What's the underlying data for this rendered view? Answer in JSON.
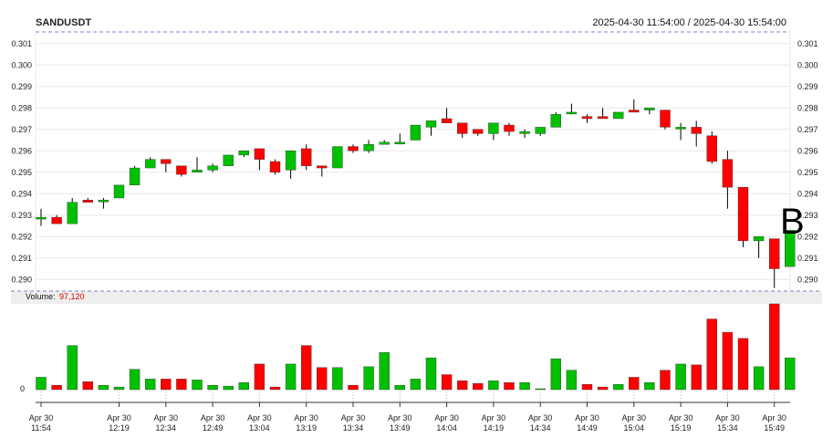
{
  "symbol": "SANDUSDT",
  "time_range": "2025-04-30 11:54:00 / 2025-04-30 15:54:00",
  "volume_label": "Volume:",
  "volume_value": "97,120",
  "volume_axis_label": "0",
  "marker_text": "B",
  "colors": {
    "up": "#00c000",
    "down": "#ff0000",
    "wick": "#000000",
    "grid": "#e8e8e8",
    "separator": "#8080c0",
    "volume_band": "#eeeeee"
  },
  "chart_data": {
    "type": "candlestick",
    "title": "SANDUSDT",
    "price_axis": {
      "range": [
        0.2895,
        0.3015
      ],
      "ticks": [
        "0.301",
        "0.300",
        "0.299",
        "0.298",
        "0.297",
        "0.296",
        "0.295",
        "0.294",
        "0.293",
        "0.292",
        "0.291",
        "0.290"
      ],
      "both_sides": true
    },
    "grid": true,
    "x_ticks": [
      {
        "index": 0,
        "line1": "Apr 30",
        "line2": "11:54"
      },
      {
        "index": 5,
        "line1": "Apr 30",
        "line2": "12:19"
      },
      {
        "index": 8,
        "line1": "Apr 30",
        "line2": "12:34"
      },
      {
        "index": 11,
        "line1": "Apr 30",
        "line2": "12:49"
      },
      {
        "index": 14,
        "line1": "Apr 30",
        "line2": "13:04"
      },
      {
        "index": 17,
        "line1": "Apr 30",
        "line2": "13:19"
      },
      {
        "index": 20,
        "line1": "Apr 30",
        "line2": "13:34"
      },
      {
        "index": 23,
        "line1": "Apr 30",
        "line2": "13:49"
      },
      {
        "index": 26,
        "line1": "Apr 30",
        "line2": "14:04"
      },
      {
        "index": 29,
        "line1": "Apr 30",
        "line2": "14:19"
      },
      {
        "index": 32,
        "line1": "Apr 30",
        "line2": "14:34"
      },
      {
        "index": 35,
        "line1": "Apr 30",
        "line2": "14:49"
      },
      {
        "index": 38,
        "line1": "Apr 30",
        "line2": "15:04"
      },
      {
        "index": 41,
        "line1": "Apr 30",
        "line2": "15:19"
      },
      {
        "index": 44,
        "line1": "Apr 30",
        "line2": "15:34"
      },
      {
        "index": 47,
        "line1": "Apr 30",
        "line2": "15:49"
      }
    ],
    "candles": [
      {
        "o": 0.2929,
        "h": 0.2933,
        "l": 0.2925,
        "c": 0.2929,
        "v": 14000
      },
      {
        "o": 0.2929,
        "h": 0.293,
        "l": 0.2926,
        "c": 0.2926,
        "v": 5000
      },
      {
        "o": 0.2926,
        "h": 0.2938,
        "l": 0.2926,
        "c": 0.2936,
        "v": 50000
      },
      {
        "o": 0.2937,
        "h": 0.2938,
        "l": 0.2936,
        "c": 0.2936,
        "v": 9000
      },
      {
        "o": 0.2937,
        "h": 0.2938,
        "l": 0.2933,
        "c": 0.2937,
        "v": 5000
      },
      {
        "o": 0.2938,
        "h": 0.2944,
        "l": 0.2938,
        "c": 0.2944,
        "v": 3000
      },
      {
        "o": 0.2944,
        "h": 0.2953,
        "l": 0.2944,
        "c": 0.2952,
        "v": 23000
      },
      {
        "o": 0.2952,
        "h": 0.2957,
        "l": 0.2952,
        "c": 0.2956,
        "v": 12000
      },
      {
        "o": 0.2956,
        "h": 0.2956,
        "l": 0.295,
        "c": 0.2954,
        "v": 12000
      },
      {
        "o": 0.2953,
        "h": 0.2953,
        "l": 0.2948,
        "c": 0.2949,
        "v": 12000
      },
      {
        "o": 0.295,
        "h": 0.2957,
        "l": 0.295,
        "c": 0.2951,
        "v": 11000
      },
      {
        "o": 0.2951,
        "h": 0.2954,
        "l": 0.295,
        "c": 0.2953,
        "v": 5000
      },
      {
        "o": 0.2953,
        "h": 0.2958,
        "l": 0.2953,
        "c": 0.2958,
        "v": 4000
      },
      {
        "o": 0.2958,
        "h": 0.296,
        "l": 0.2957,
        "c": 0.296,
        "v": 8000
      },
      {
        "o": 0.2961,
        "h": 0.2961,
        "l": 0.2951,
        "c": 0.2956,
        "v": 29000
      },
      {
        "o": 0.2955,
        "h": 0.2956,
        "l": 0.2949,
        "c": 0.295,
        "v": 3000
      },
      {
        "o": 0.2951,
        "h": 0.296,
        "l": 0.2947,
        "c": 0.296,
        "v": 29000
      },
      {
        "o": 0.2961,
        "h": 0.2963,
        "l": 0.2951,
        "c": 0.2953,
        "v": 50000
      },
      {
        "o": 0.2953,
        "h": 0.2953,
        "l": 0.2948,
        "c": 0.2952,
        "v": 25000
      },
      {
        "o": 0.2952,
        "h": 0.2962,
        "l": 0.2952,
        "c": 0.2962,
        "v": 25000
      },
      {
        "o": 0.2962,
        "h": 0.2963,
        "l": 0.2959,
        "c": 0.296,
        "v": 5000
      },
      {
        "o": 0.296,
        "h": 0.2965,
        "l": 0.2959,
        "c": 0.2963,
        "v": 26000
      },
      {
        "o": 0.2963,
        "h": 0.2965,
        "l": 0.2963,
        "c": 0.2964,
        "v": 42000
      },
      {
        "o": 0.2964,
        "h": 0.2968,
        "l": 0.2963,
        "c": 0.2964,
        "v": 5000
      },
      {
        "o": 0.2965,
        "h": 0.2972,
        "l": 0.2965,
        "c": 0.2972,
        "v": 12000
      },
      {
        "o": 0.2971,
        "h": 0.2974,
        "l": 0.2967,
        "c": 0.2974,
        "v": 36000
      },
      {
        "o": 0.2975,
        "h": 0.298,
        "l": 0.2973,
        "c": 0.2973,
        "v": 17000
      },
      {
        "o": 0.2973,
        "h": 0.2973,
        "l": 0.2966,
        "c": 0.2968,
        "v": 10000
      },
      {
        "o": 0.297,
        "h": 0.297,
        "l": 0.2967,
        "c": 0.2968,
        "v": 7000
      },
      {
        "o": 0.2968,
        "h": 0.2973,
        "l": 0.2965,
        "c": 0.2973,
        "v": 10000
      },
      {
        "o": 0.2972,
        "h": 0.2973,
        "l": 0.2967,
        "c": 0.2969,
        "v": 8000
      },
      {
        "o": 0.2968,
        "h": 0.297,
        "l": 0.2966,
        "c": 0.2969,
        "v": 8000
      },
      {
        "o": 0.2968,
        "h": 0.2971,
        "l": 0.2967,
        "c": 0.2971,
        "v": 500
      },
      {
        "o": 0.2971,
        "h": 0.2978,
        "l": 0.2971,
        "c": 0.2977,
        "v": 35000
      },
      {
        "o": 0.2978,
        "h": 0.2982,
        "l": 0.2977,
        "c": 0.2978,
        "v": 22000
      },
      {
        "o": 0.2976,
        "h": 0.2977,
        "l": 0.2973,
        "c": 0.2975,
        "v": 6000
      },
      {
        "o": 0.2976,
        "h": 0.298,
        "l": 0.2975,
        "c": 0.2975,
        "v": 3000
      },
      {
        "o": 0.2975,
        "h": 0.2978,
        "l": 0.2975,
        "c": 0.2978,
        "v": 6000
      },
      {
        "o": 0.2979,
        "h": 0.2984,
        "l": 0.2978,
        "c": 0.2978,
        "v": 14000
      },
      {
        "o": 0.2979,
        "h": 0.298,
        "l": 0.2977,
        "c": 0.298,
        "v": 8000
      },
      {
        "o": 0.2979,
        "h": 0.2979,
        "l": 0.297,
        "c": 0.2971,
        "v": 22000
      },
      {
        "o": 0.2971,
        "h": 0.2973,
        "l": 0.2965,
        "c": 0.2971,
        "v": 29000
      },
      {
        "o": 0.2971,
        "h": 0.2974,
        "l": 0.2962,
        "c": 0.2968,
        "v": 28000
      },
      {
        "o": 0.2967,
        "h": 0.2969,
        "l": 0.2954,
        "c": 0.2955,
        "v": 80000
      },
      {
        "o": 0.2956,
        "h": 0.296,
        "l": 0.2933,
        "c": 0.2943,
        "v": 65000
      },
      {
        "o": 0.2943,
        "h": 0.2943,
        "l": 0.2915,
        "c": 0.2918,
        "v": 58000
      },
      {
        "o": 0.2918,
        "h": 0.292,
        "l": 0.291,
        "c": 0.292,
        "v": 26000
      },
      {
        "o": 0.2919,
        "h": 0.2919,
        "l": 0.2896,
        "c": 0.2905,
        "v": 97120
      },
      {
        "o": 0.2906,
        "h": 0.2923,
        "l": 0.2906,
        "c": 0.2923,
        "v": 36000
      }
    ]
  }
}
